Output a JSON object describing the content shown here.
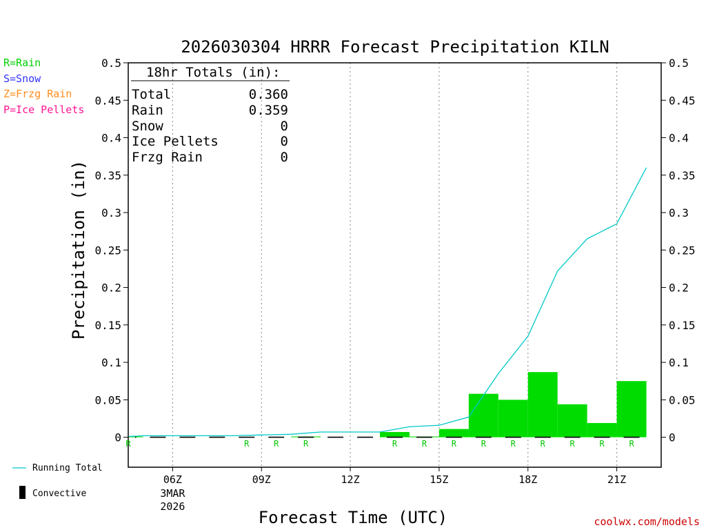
{
  "chart_data": {
    "type": "bar",
    "title": "2026030304 HRRR Forecast Precipitation KILN",
    "xlabel": "Forecast Time (UTC)",
    "ylabel": "Precipitation (in)",
    "ylim": [
      -0.04,
      0.5
    ],
    "xlim": [
      4.5,
      22.5
    ],
    "y_ticks": [
      "0.5",
      "0.45",
      "0.4",
      "0.35",
      "0.3",
      "0.25",
      "0.2",
      "0.15",
      "0.1",
      "0.05",
      "0"
    ],
    "x_ticks": [
      {
        "hour": 6,
        "label": "06Z",
        "date": "3MAR",
        "year": "2026"
      },
      {
        "hour": 9,
        "label": "09Z"
      },
      {
        "hour": 12,
        "label": "12Z"
      },
      {
        "hour": 15,
        "label": "15Z"
      },
      {
        "hour": 18,
        "label": "18Z"
      },
      {
        "hour": 21,
        "label": "21Z"
      }
    ],
    "bars": {
      "hours": [
        5,
        6,
        7,
        8,
        9,
        10,
        11,
        12,
        13,
        14,
        15,
        16,
        17,
        18,
        19,
        20,
        21,
        22
      ],
      "values": [
        0.001,
        0.0,
        0.0,
        0.0,
        0.0,
        0.0,
        0.001,
        0.0,
        0.0,
        0.007,
        0.001,
        0.011,
        0.058,
        0.05,
        0.087,
        0.044,
        0.019,
        0.075
      ],
      "color": "#00dc00"
    },
    "running_total": {
      "name": "Running Total",
      "color": "#00c8c8",
      "hours": [
        4.5,
        5,
        6,
        7,
        8,
        9,
        10,
        11,
        12,
        13,
        14,
        15,
        16,
        17,
        18,
        19,
        20,
        21,
        22
      ],
      "values": [
        0.001,
        0.002,
        0.002,
        0.002,
        0.002,
        0.003,
        0.004,
        0.007,
        0.007,
        0.007,
        0.014,
        0.016,
        0.027,
        0.085,
        0.135,
        0.222,
        0.265,
        0.285,
        0.36
      ]
    },
    "precip_type_marks": {
      "hours": [
        5,
        9,
        10,
        11,
        14,
        15,
        16,
        17,
        18,
        19,
        20,
        21,
        22
      ],
      "label": "R",
      "color": "#00c800"
    },
    "totals_box": {
      "header": "18hr Totals (in):",
      "rows": [
        {
          "label": "Total",
          "value": "0.360"
        },
        {
          "label": "Rain",
          "value": "0.359"
        },
        {
          "label": "Snow",
          "value": "0"
        },
        {
          "label": "Ice Pellets",
          "value": "0"
        },
        {
          "label": "Frzg Rain",
          "value": "0"
        }
      ]
    },
    "type_legend": [
      {
        "text": "R=Rain",
        "color": "#00d000"
      },
      {
        "text": "S=Snow",
        "color": "#3333ff"
      },
      {
        "text": "Z=Frzg Rain",
        "color": "#ff8c1a"
      },
      {
        "text": "P=Ice Pellets",
        "color": "#ff1493"
      }
    ],
    "line_legend": [
      {
        "text": "Running Total",
        "kind": "line",
        "color": "#00c8c8"
      },
      {
        "text": "Convective",
        "kind": "box",
        "color": "#000000"
      }
    ],
    "credit": {
      "text": "coolwx.com/models",
      "color": "#cc0000"
    }
  }
}
